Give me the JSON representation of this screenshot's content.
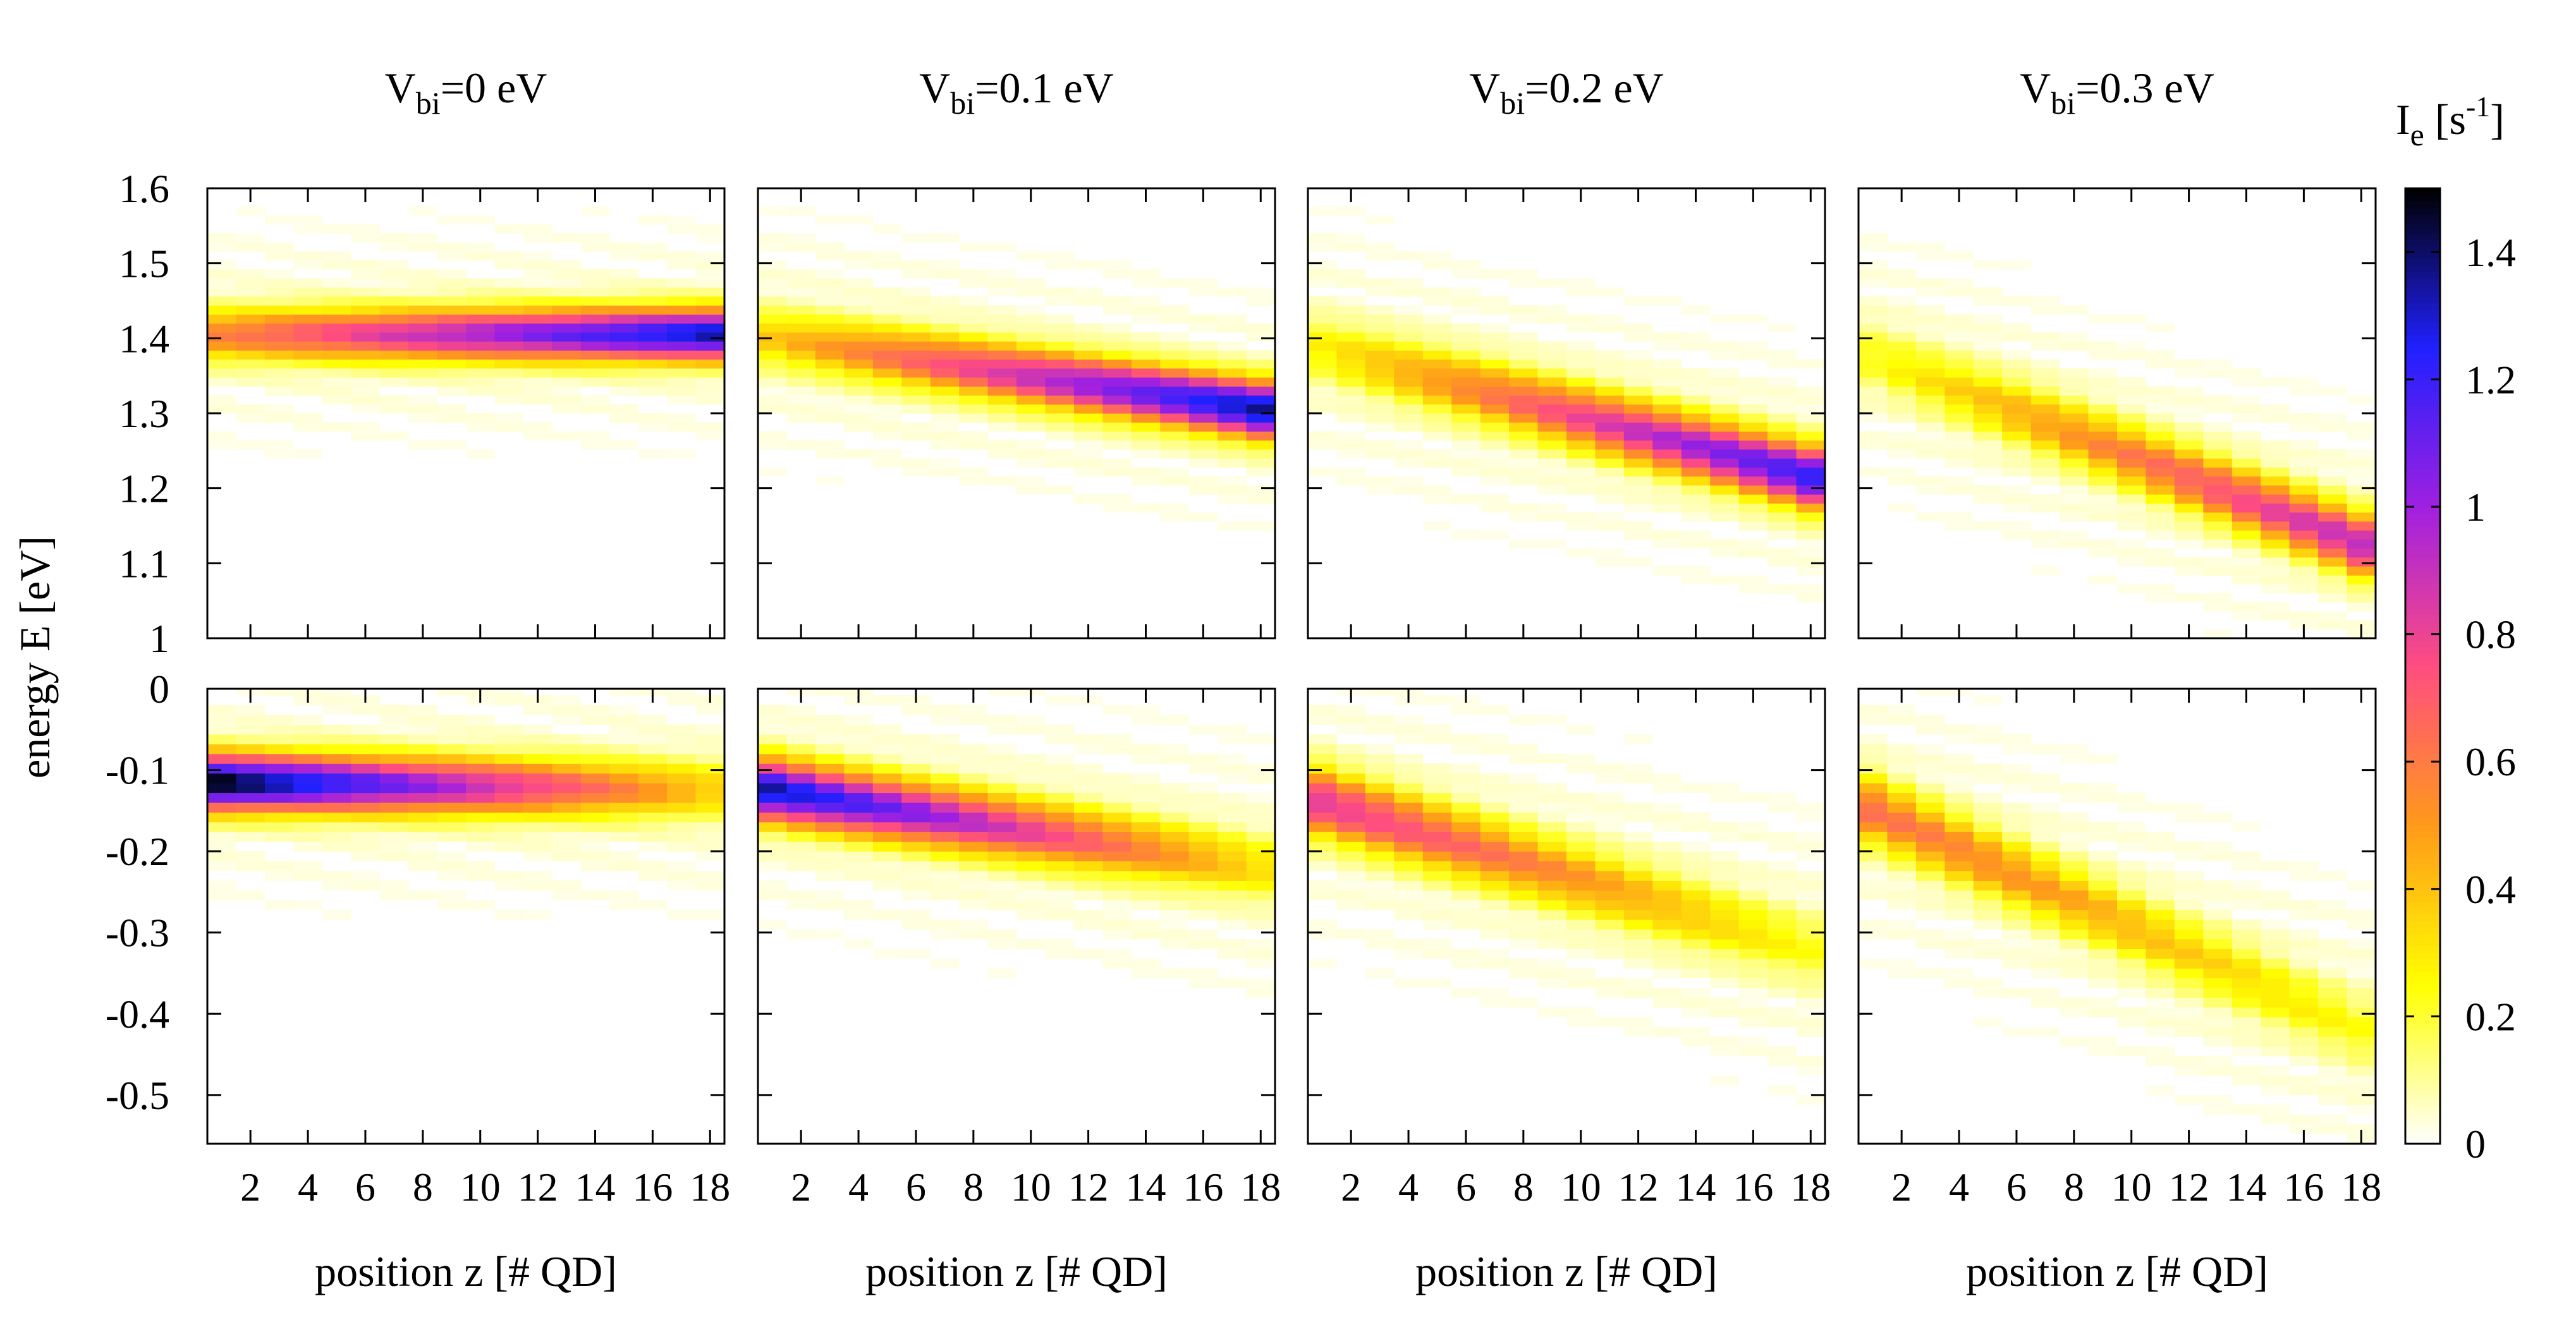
{
  "chart_data": {
    "type": "heatmap",
    "ylabel": "energy E [eV]",
    "xlabel": "position z [# QD]",
    "x_range": [
      0.5,
      18.5
    ],
    "x_ticks": [
      "2",
      "4",
      "6",
      "8",
      "10",
      "12",
      "14",
      "16",
      "18"
    ],
    "colorbar": {
      "label_main": "I",
      "label_sub": "e",
      "label_unit_open": " [s",
      "label_unit_sup": "-1",
      "label_unit_close": "]",
      "range": [
        0,
        1.5
      ],
      "ticks": [
        "0",
        "0.2",
        "0.4",
        "0.6",
        "0.8",
        "1",
        "1.2",
        "1.4"
      ],
      "colormap": [
        "#ffffff",
        "#ffff00",
        "#ff9a1a",
        "#ff4d80",
        "#a020e0",
        "#2020ff",
        "#000000"
      ]
    },
    "rows": [
      {
        "name": "conduction",
        "ylim": [
          1.0,
          1.6
        ],
        "yticks": [
          "1",
          "1.1",
          "1.2",
          "1.3",
          "1.4",
          "1.5",
          "1.6"
        ]
      },
      {
        "name": "valence",
        "ylim": [
          -0.56,
          0.0
        ],
        "yticks": [
          "0",
          "-0.1",
          "-0.2",
          "-0.3",
          "-0.4",
          "-0.5"
        ]
      }
    ],
    "panels": [
      {
        "title_main": "V",
        "title_sub": "bi",
        "title_rest": "=0 eV",
        "vbi": 0.0,
        "conduction": {
          "center_start": 1.405,
          "center_end": 1.405,
          "width": 0.05,
          "peak_start": 0.55,
          "peak_end": 1.3
        },
        "valence": {
          "center_start": -0.115,
          "center_end": -0.125,
          "width": 0.05,
          "peak_start": 1.45,
          "peak_end": 0.35
        }
      },
      {
        "title_main": "V",
        "title_sub": "bi",
        "title_rest": "=0.1 eV",
        "vbi": 0.1,
        "conduction": {
          "center_start": 1.4,
          "center_end": 1.305,
          "width": 0.055,
          "peak_start": 0.35,
          "peak_end": 1.35
        },
        "valence": {
          "center_start": -0.125,
          "center_end": -0.22,
          "width": 0.055,
          "peak_start": 1.3,
          "peak_end": 0.3
        }
      },
      {
        "title_main": "V",
        "title_sub": "bi",
        "title_rest": "=0.2 eV",
        "vbi": 0.2,
        "conduction": {
          "center_start": 1.385,
          "center_end": 1.215,
          "width": 0.06,
          "peak_start": 0.25,
          "peak_end": 1.2
        },
        "valence": {
          "center_start": -0.14,
          "center_end": -0.32,
          "width": 0.06,
          "peak_start": 0.8,
          "peak_end": 0.2
        }
      },
      {
        "title_main": "V",
        "title_sub": "bi",
        "title_rest": "=0.3 eV",
        "vbi": 0.3,
        "conduction": {
          "center_start": 1.375,
          "center_end": 1.125,
          "width": 0.06,
          "peak_start": 0.2,
          "peak_end": 0.9
        },
        "valence": {
          "center_start": -0.15,
          "center_end": -0.42,
          "width": 0.06,
          "peak_start": 0.6,
          "peak_end": 0.2
        }
      }
    ]
  }
}
